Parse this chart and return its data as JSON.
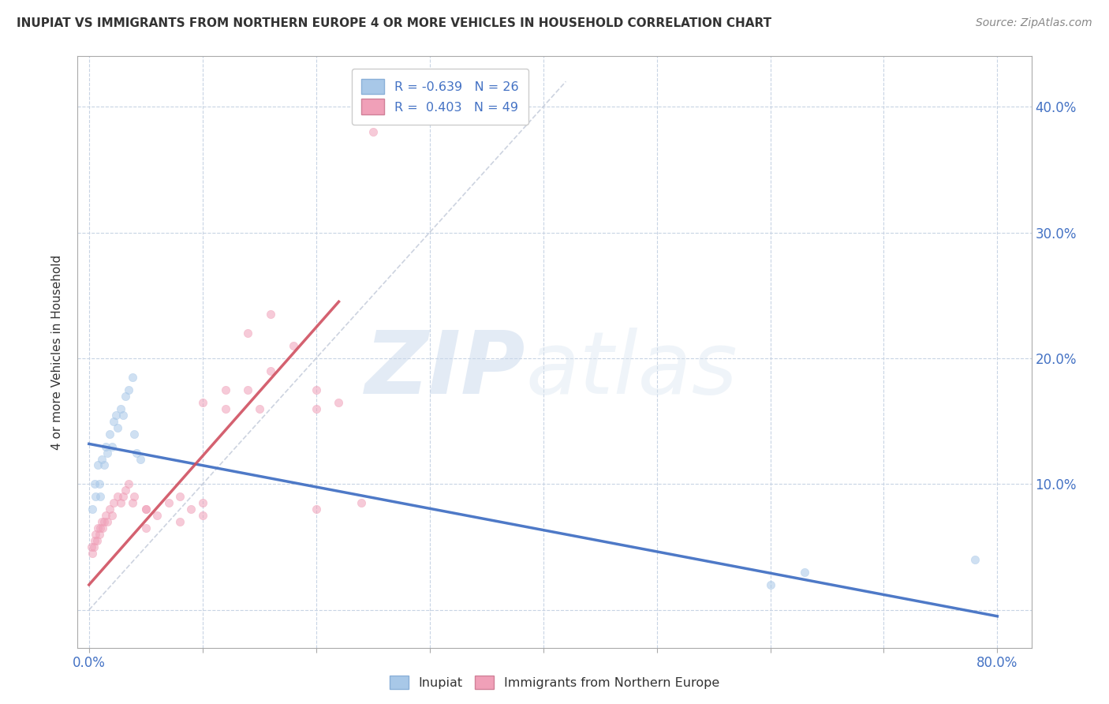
{
  "title": "INUPIAT VS IMMIGRANTS FROM NORTHERN EUROPE 4 OR MORE VEHICLES IN HOUSEHOLD CORRELATION CHART",
  "source": "Source: ZipAtlas.com",
  "ylabel": "4 or more Vehicles in Household",
  "yticks": [
    0.0,
    0.1,
    0.2,
    0.3,
    0.4
  ],
  "ytick_labels_right": [
    "",
    "10.0%",
    "20.0%",
    "30.0%",
    "40.0%"
  ],
  "xticks": [
    0.0,
    0.1,
    0.2,
    0.3,
    0.4,
    0.5,
    0.6,
    0.7,
    0.8
  ],
  "xlim": [
    -0.01,
    0.83
  ],
  "ylim": [
    -0.03,
    0.44
  ],
  "color_blue": "#a8c8e8",
  "color_pink": "#f0a0b8",
  "color_blue_line": "#4472c4",
  "color_pink_line": "#d05060",
  "color_diag": "#c0c8d8",
  "watermark_zip": "ZIP",
  "watermark_atlas": "atlas",
  "blue_scatter_x": [
    0.003,
    0.005,
    0.006,
    0.008,
    0.009,
    0.01,
    0.011,
    0.013,
    0.015,
    0.016,
    0.018,
    0.02,
    0.022,
    0.024,
    0.025,
    0.028,
    0.03,
    0.032,
    0.035,
    0.038,
    0.04,
    0.042,
    0.045,
    0.6,
    0.63,
    0.78
  ],
  "blue_scatter_y": [
    0.08,
    0.1,
    0.09,
    0.115,
    0.1,
    0.09,
    0.12,
    0.115,
    0.13,
    0.125,
    0.14,
    0.13,
    0.15,
    0.155,
    0.145,
    0.16,
    0.155,
    0.17,
    0.175,
    0.185,
    0.14,
    0.125,
    0.12,
    0.02,
    0.03,
    0.04
  ],
  "pink_scatter_x": [
    0.002,
    0.003,
    0.004,
    0.005,
    0.006,
    0.007,
    0.008,
    0.009,
    0.01,
    0.011,
    0.012,
    0.013,
    0.015,
    0.016,
    0.018,
    0.02,
    0.022,
    0.025,
    0.028,
    0.03,
    0.032,
    0.035,
    0.038,
    0.04,
    0.05,
    0.06,
    0.07,
    0.08,
    0.09,
    0.1,
    0.12,
    0.14,
    0.16,
    0.18,
    0.2,
    0.22,
    0.1,
    0.12,
    0.14,
    0.16,
    0.2,
    0.24,
    0.25,
    0.05,
    0.08,
    0.1,
    0.15,
    0.2,
    0.05
  ],
  "pink_scatter_y": [
    0.05,
    0.045,
    0.05,
    0.055,
    0.06,
    0.055,
    0.065,
    0.06,
    0.065,
    0.07,
    0.065,
    0.07,
    0.075,
    0.07,
    0.08,
    0.075,
    0.085,
    0.09,
    0.085,
    0.09,
    0.095,
    0.1,
    0.085,
    0.09,
    0.08,
    0.075,
    0.085,
    0.09,
    0.08,
    0.085,
    0.16,
    0.175,
    0.19,
    0.21,
    0.175,
    0.165,
    0.165,
    0.175,
    0.22,
    0.235,
    0.16,
    0.085,
    0.38,
    0.08,
    0.07,
    0.075,
    0.16,
    0.08,
    0.065
  ],
  "blue_line_x": [
    0.0,
    0.8
  ],
  "blue_line_y": [
    0.132,
    -0.005
  ],
  "pink_line_x": [
    0.0,
    0.22
  ],
  "pink_line_y": [
    0.02,
    0.245
  ],
  "diag_line_x": [
    0.0,
    0.42
  ],
  "diag_line_y": [
    0.0,
    0.42
  ],
  "grid_color": "#c8d4e4",
  "background_color": "#ffffff",
  "marker_size": 55,
  "marker_alpha": 0.55
}
